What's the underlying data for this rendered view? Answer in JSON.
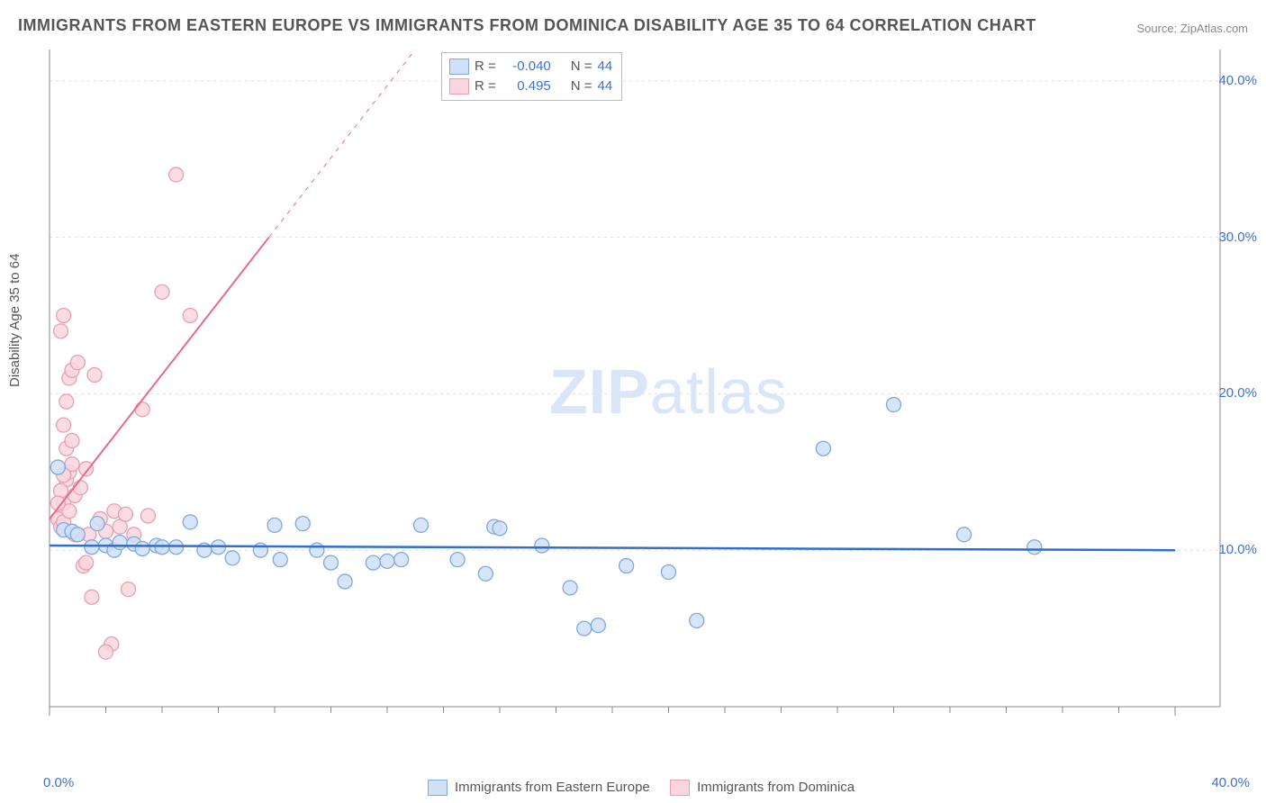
{
  "title": "IMMIGRANTS FROM EASTERN EUROPE VS IMMIGRANTS FROM DOMINICA DISABILITY AGE 35 TO 64 CORRELATION CHART",
  "source": "Source: ZipAtlas.com",
  "y_axis_label": "Disability Age 35 to 64",
  "watermark_bold": "ZIP",
  "watermark_light": "atlas",
  "chart": {
    "type": "scatter",
    "xlim": [
      0,
      40
    ],
    "ylim": [
      0,
      42
    ],
    "x_ticks": [
      0,
      40
    ],
    "x_tick_labels": [
      "0.0%",
      "40.0%"
    ],
    "y_ticks": [
      10,
      20,
      30,
      40
    ],
    "y_tick_labels": [
      "10.0%",
      "20.0%",
      "30.0%",
      "40.0%"
    ],
    "grid_y": [
      10,
      20,
      30,
      40
    ],
    "minor_ticks_x": [
      2,
      4,
      6,
      8,
      10,
      12,
      14,
      16,
      18,
      20,
      22,
      24,
      26,
      28,
      30,
      32,
      34,
      36,
      38
    ],
    "background_color": "#ffffff",
    "grid_color": "#dddddd",
    "axis_color": "#888888",
    "series": [
      {
        "name": "Immigrants from Eastern Europe",
        "color_fill": "#cfe0f7",
        "color_stroke": "#7fa8e0",
        "trend_color": "#2f6fd0",
        "trend_width": 2.5,
        "R": "-0.040",
        "N": "44",
        "trend": {
          "x1": 0,
          "y1": 10.3,
          "x2": 40,
          "y2": 10.0
        },
        "points": [
          [
            0.3,
            15.3
          ],
          [
            0.5,
            11.3
          ],
          [
            0.8,
            11.2
          ],
          [
            1.0,
            11.0
          ],
          [
            1.5,
            10.2
          ],
          [
            1.7,
            11.7
          ],
          [
            2.0,
            10.3
          ],
          [
            2.3,
            10.0
          ],
          [
            2.5,
            10.5
          ],
          [
            3.0,
            10.4
          ],
          [
            3.3,
            10.1
          ],
          [
            3.8,
            10.3
          ],
          [
            4.5,
            10.2
          ],
          [
            5.0,
            11.8
          ],
          [
            5.5,
            10.0
          ],
          [
            6.0,
            10.2
          ],
          [
            6.5,
            9.5
          ],
          [
            7.5,
            10.0
          ],
          [
            8.0,
            11.6
          ],
          [
            8.2,
            9.4
          ],
          [
            9.0,
            11.7
          ],
          [
            9.5,
            10.0
          ],
          [
            10.0,
            9.2
          ],
          [
            10.5,
            8.0
          ],
          [
            11.5,
            9.2
          ],
          [
            12.0,
            9.3
          ],
          [
            12.5,
            9.4
          ],
          [
            13.2,
            11.6
          ],
          [
            14.5,
            9.4
          ],
          [
            15.5,
            8.5
          ],
          [
            15.8,
            11.5
          ],
          [
            16.0,
            11.4
          ],
          [
            17.5,
            10.3
          ],
          [
            18.5,
            7.6
          ],
          [
            19.0,
            5.0
          ],
          [
            19.5,
            5.2
          ],
          [
            20.5,
            9.0
          ],
          [
            22.0,
            8.6
          ],
          [
            23.0,
            5.5
          ],
          [
            27.5,
            16.5
          ],
          [
            30.0,
            19.3
          ],
          [
            32.5,
            11.0
          ],
          [
            35.0,
            10.2
          ],
          [
            4.0,
            10.2
          ]
        ]
      },
      {
        "name": "Immigrants from Dominica",
        "color_fill": "#f9d6de",
        "color_stroke": "#e89fb0",
        "trend_color": "#e86a8a",
        "trend_width": 2,
        "R": "0.495",
        "N": "44",
        "trend": {
          "x1": 0,
          "y1": 12.0,
          "x2": 7.8,
          "y2": 30.0
        },
        "trend_dash": {
          "x1": 7.8,
          "y1": 30.0,
          "x2": 13.0,
          "y2": 42.0
        },
        "points": [
          [
            0.3,
            12.0
          ],
          [
            0.4,
            11.5
          ],
          [
            0.5,
            13.0
          ],
          [
            0.6,
            14.5
          ],
          [
            0.7,
            15.0
          ],
          [
            0.8,
            15.5
          ],
          [
            0.5,
            18.0
          ],
          [
            0.6,
            19.5
          ],
          [
            0.7,
            21.0
          ],
          [
            0.8,
            21.5
          ],
          [
            0.4,
            24.0
          ],
          [
            0.5,
            25.0
          ],
          [
            1.0,
            11.0
          ],
          [
            1.2,
            9.0
          ],
          [
            1.3,
            9.2
          ],
          [
            1.5,
            7.0
          ],
          [
            1.8,
            12.0
          ],
          [
            2.0,
            11.2
          ],
          [
            2.3,
            12.5
          ],
          [
            2.5,
            11.5
          ],
          [
            2.7,
            12.3
          ],
          [
            2.8,
            7.5
          ],
          [
            2.2,
            4.0
          ],
          [
            2.0,
            3.5
          ],
          [
            3.0,
            11.0
          ],
          [
            3.3,
            19.0
          ],
          [
            3.5,
            12.2
          ],
          [
            4.0,
            26.5
          ],
          [
            4.5,
            34.0
          ],
          [
            5.0,
            25.0
          ],
          [
            0.9,
            13.5
          ],
          [
            1.1,
            14.0
          ],
          [
            0.6,
            16.5
          ],
          [
            1.4,
            11.0
          ],
          [
            1.6,
            21.2
          ],
          [
            1.0,
            22.0
          ],
          [
            0.5,
            11.8
          ],
          [
            0.7,
            12.5
          ],
          [
            0.9,
            11.0
          ],
          [
            1.3,
            15.2
          ],
          [
            0.4,
            13.8
          ],
          [
            0.8,
            17.0
          ],
          [
            0.3,
            13.0
          ],
          [
            0.5,
            14.8
          ]
        ]
      }
    ]
  },
  "top_legend": {
    "rows": [
      {
        "swatch_fill": "#cfe0f7",
        "swatch_stroke": "#7fa8e0",
        "R_label": "R =",
        "R_val": "-0.040",
        "N_label": "N =",
        "N_val": "44"
      },
      {
        "swatch_fill": "#f9d6de",
        "swatch_stroke": "#e89fb0",
        "R_label": "R =",
        "R_val": "0.495",
        "N_label": "N =",
        "N_val": "44"
      }
    ]
  },
  "bottom_legend": {
    "items": [
      {
        "swatch_fill": "#cfe0f7",
        "swatch_stroke": "#7fa8e0",
        "label": "Immigrants from Eastern Europe"
      },
      {
        "swatch_fill": "#f9d6de",
        "swatch_stroke": "#e89fb0",
        "label": "Immigrants from Dominica"
      }
    ]
  }
}
